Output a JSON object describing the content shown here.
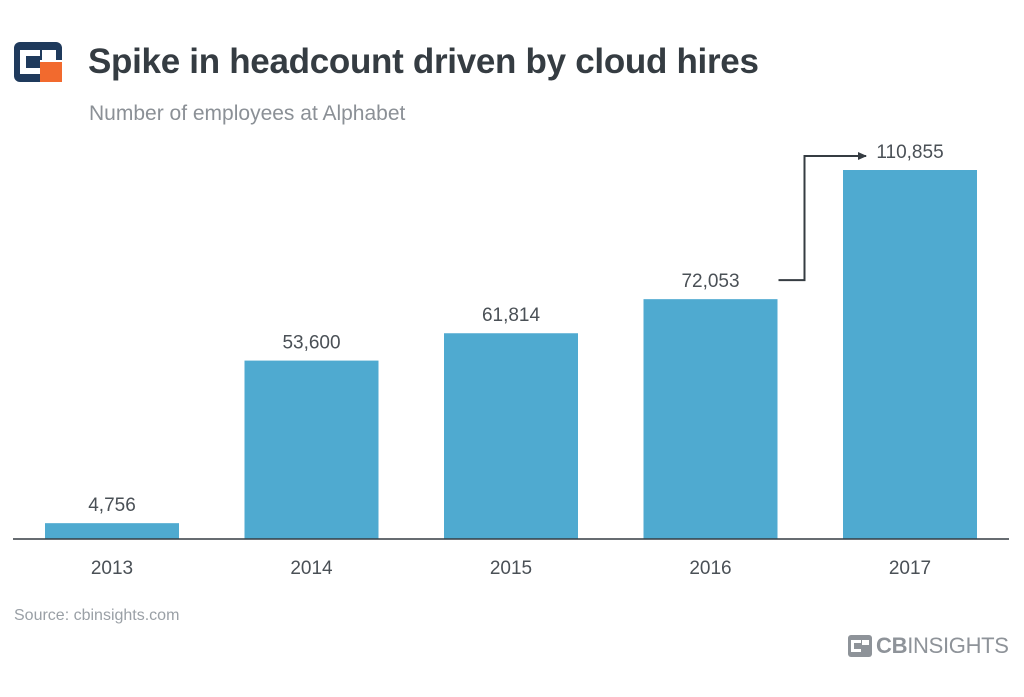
{
  "header": {
    "title": "Spike in headcount driven by cloud hires",
    "subtitle": "Number of employees at Alphabet"
  },
  "chart_data": {
    "type": "bar",
    "title": "Spike in headcount driven by cloud hires",
    "subtitle": "Number of employees at Alphabet",
    "categories": [
      "2013",
      "2014",
      "2015",
      "2016",
      "2017"
    ],
    "values": [
      4756,
      53600,
      61814,
      72053,
      110855
    ],
    "value_labels": [
      "4,756",
      "53,600",
      "61,814",
      "72,053",
      "110,855"
    ],
    "xlabel": "",
    "ylabel": "",
    "ylim": [
      0,
      121000
    ],
    "grid": false,
    "bar_color": "#4faad0",
    "annotation": {
      "from": "2016",
      "to": "2017",
      "style": "arrow"
    }
  },
  "footer": {
    "source": "Source: cbinsights.com",
    "logo_bold": "CB",
    "logo_light": "INSIGHTS"
  },
  "colors": {
    "title": "#353c42",
    "subtitle": "#8b9096",
    "axis": "#353c42",
    "logo_navy": "#1f3a5c",
    "logo_orange": "#f26a2e"
  }
}
